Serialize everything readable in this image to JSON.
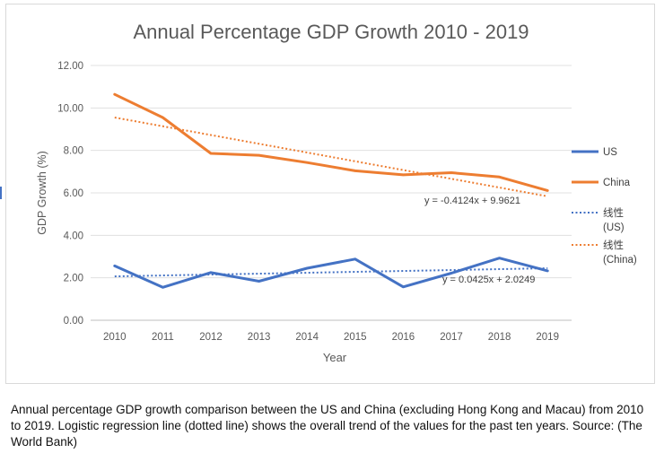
{
  "chart_data": {
    "type": "line",
    "title": "Annual Percentage GDP Growth 2010 - 2019",
    "xlabel": "Year",
    "ylabel": "GDP Growth (%)",
    "ylim": [
      0,
      12
    ],
    "yticks": [
      "0.00",
      "2.00",
      "4.00",
      "6.00",
      "8.00",
      "10.00",
      "12.00"
    ],
    "grid": true,
    "legend_position": "right",
    "categories": [
      "2010",
      "2011",
      "2012",
      "2013",
      "2014",
      "2015",
      "2016",
      "2017",
      "2018",
      "2019"
    ],
    "series": [
      {
        "name": "US",
        "color": "#4472c4",
        "values": [
          2.56,
          1.55,
          2.25,
          1.84,
          2.45,
          2.88,
          1.57,
          2.22,
          2.93,
          2.33
        ]
      },
      {
        "name": "China",
        "color": "#ed7d31",
        "values": [
          10.64,
          9.55,
          7.86,
          7.77,
          7.43,
          7.04,
          6.85,
          6.95,
          6.75,
          6.11
        ]
      }
    ],
    "trendlines": [
      {
        "name": "线性",
        "name_sub": "(US)",
        "series": "US",
        "color": "#4472c4",
        "slope": 0.0425,
        "intercept": 2.0249,
        "equation": "y = 0.0425x + 2.0249"
      },
      {
        "name": "线性",
        "name_sub": "(China)",
        "series": "China",
        "color": "#ed7d31",
        "slope": -0.4124,
        "intercept": 9.9621,
        "equation": "y = -0.4124x + 9.9621"
      }
    ]
  },
  "caption": {
    "text": "Annual percentage GDP growth comparison between the US and China (excluding Hong Kong and Macau) from 2010 to 2019. Logistic regression line (dotted line) shows the overall trend of the values for the past ten years. Source: (The World Bank)"
  }
}
